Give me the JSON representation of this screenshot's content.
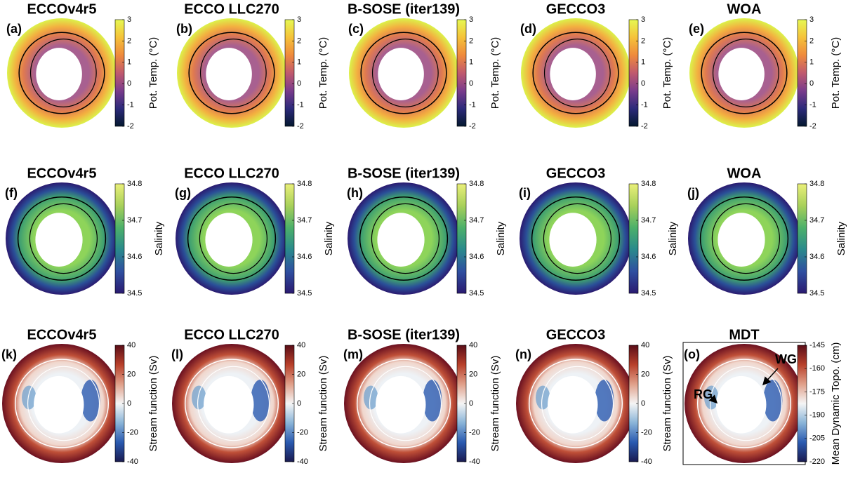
{
  "panels": [
    {
      "title": "ECCOv4r5",
      "label": "(a)",
      "colorbar": {
        "label": "Pot. Temp. (°C)",
        "lim": [
          -2,
          3
        ],
        "ticks": [
          -2,
          -1,
          0,
          1,
          2,
          3
        ],
        "colors": [
          "#04182e",
          "#2c2a7a",
          "#7a3c8c",
          "#c05a6e",
          "#ef8a3c",
          "#f5c23a",
          "#e6f852"
        ]
      }
    },
    {
      "title": "ECCO LLC270",
      "label": "(b)",
      "colorbar": {
        "label": "Pot. Temp. (°C)",
        "lim": [
          -2,
          3
        ],
        "ticks": [
          -2,
          -1,
          0,
          1,
          2,
          3
        ],
        "colors": [
          "#04182e",
          "#2c2a7a",
          "#7a3c8c",
          "#c05a6e",
          "#ef8a3c",
          "#f5c23a",
          "#e6f852"
        ]
      }
    },
    {
      "title": "B-SOSE (iter139)",
      "label": "(c)",
      "colorbar": {
        "label": "Pot. Temp. (°C)",
        "lim": [
          -2,
          3
        ],
        "ticks": [
          -2,
          -1,
          0,
          1,
          2,
          3
        ],
        "colors": [
          "#04182e",
          "#2c2a7a",
          "#7a3c8c",
          "#c05a6e",
          "#ef8a3c",
          "#f5c23a",
          "#e6f852"
        ]
      }
    },
    {
      "title": "GECCO3",
      "label": "(d)",
      "colorbar": {
        "label": "Pot. Temp. (°C)",
        "lim": [
          -2,
          3
        ],
        "ticks": [
          -2,
          -1,
          0,
          1,
          2,
          3
        ],
        "colors": [
          "#04182e",
          "#2c2a7a",
          "#7a3c8c",
          "#c05a6e",
          "#ef8a3c",
          "#f5c23a",
          "#e6f852"
        ]
      }
    },
    {
      "title": "WOA",
      "label": "(e)",
      "colorbar": {
        "label": "Pot. Temp. (°C)",
        "lim": [
          -2,
          3
        ],
        "ticks": [
          -2,
          -1,
          0,
          1,
          2,
          3
        ],
        "colors": [
          "#04182e",
          "#2c2a7a",
          "#7a3c8c",
          "#c05a6e",
          "#ef8a3c",
          "#f5c23a",
          "#e6f852"
        ]
      }
    },
    {
      "title": "ECCOv4r5",
      "label": "(f)",
      "colorbar": {
        "label": "Salinity",
        "lim": [
          34.5,
          34.8
        ],
        "ticks": [
          34.5,
          34.6,
          34.7,
          34.8
        ],
        "colors": [
          "#2a1a70",
          "#2f4fa0",
          "#2a8a8c",
          "#4cb06a",
          "#a8d05a",
          "#eaf07a"
        ]
      }
    },
    {
      "title": "ECCO LLC270",
      "label": "(g)",
      "colorbar": {
        "label": "Salinity",
        "lim": [
          34.5,
          34.8
        ],
        "ticks": [
          34.5,
          34.6,
          34.7,
          34.8
        ],
        "colors": [
          "#2a1a70",
          "#2f4fa0",
          "#2a8a8c",
          "#4cb06a",
          "#a8d05a",
          "#eaf07a"
        ]
      }
    },
    {
      "title": "B-SOSE (iter139)",
      "label": "(h)",
      "colorbar": {
        "label": "Salinity",
        "lim": [
          34.5,
          34.8
        ],
        "ticks": [
          34.5,
          34.6,
          34.7,
          34.8
        ],
        "colors": [
          "#2a1a70",
          "#2f4fa0",
          "#2a8a8c",
          "#4cb06a",
          "#a8d05a",
          "#eaf07a"
        ]
      }
    },
    {
      "title": "GECCO3",
      "label": "(i)",
      "colorbar": {
        "label": "Salinity",
        "lim": [
          34.5,
          34.8
        ],
        "ticks": [
          34.5,
          34.6,
          34.7,
          34.8
        ],
        "colors": [
          "#2a1a70",
          "#2f4fa0",
          "#2a8a8c",
          "#4cb06a",
          "#a8d05a",
          "#eaf07a"
        ]
      }
    },
    {
      "title": "WOA",
      "label": "(j)",
      "colorbar": {
        "label": "Salinity",
        "lim": [
          34.5,
          34.8
        ],
        "ticks": [
          34.5,
          34.6,
          34.7,
          34.8
        ],
        "colors": [
          "#2a1a70",
          "#2f4fa0",
          "#2a8a8c",
          "#4cb06a",
          "#a8d05a",
          "#eaf07a"
        ]
      }
    },
    {
      "title": "ECCOv4r5",
      "label": "(k)",
      "colorbar": {
        "label": "Stream function (Sv)",
        "lim": [
          -40,
          40
        ],
        "ticks": [
          -40,
          -20,
          0,
          20,
          40
        ],
        "colors": [
          "#1a1a50",
          "#2a5ab0",
          "#8ab4d8",
          "#f5f5f5",
          "#e0a08a",
          "#b8402a",
          "#5a0e18"
        ]
      }
    },
    {
      "title": "ECCO LLC270",
      "label": "(l)",
      "colorbar": {
        "label": "Stream function (Sv)",
        "lim": [
          -40,
          40
        ],
        "ticks": [
          -40,
          -20,
          0,
          20,
          40
        ],
        "colors": [
          "#1a1a50",
          "#2a5ab0",
          "#8ab4d8",
          "#f5f5f5",
          "#e0a08a",
          "#b8402a",
          "#5a0e18"
        ]
      }
    },
    {
      "title": "B-SOSE (iter139)",
      "label": "(m)",
      "colorbar": {
        "label": "Stream function (Sv)",
        "lim": [
          -40,
          40
        ],
        "ticks": [
          -40,
          -20,
          0,
          20,
          40
        ],
        "colors": [
          "#1a1a50",
          "#2a5ab0",
          "#8ab4d8",
          "#f5f5f5",
          "#e0a08a",
          "#b8402a",
          "#5a0e18"
        ]
      }
    },
    {
      "title": "GECCO3",
      "label": "(n)",
      "colorbar": {
        "label": "Stream function (Sv)",
        "lim": [
          -40,
          40
        ],
        "ticks": [
          -40,
          -20,
          0,
          20,
          40
        ],
        "colors": [
          "#1a1a50",
          "#2a5ab0",
          "#8ab4d8",
          "#f5f5f5",
          "#e0a08a",
          "#b8402a",
          "#5a0e18"
        ]
      }
    },
    {
      "title": "MDT",
      "label": "(o)",
      "colorbar": {
        "label": "Mean Dynamic Topo. (cm)",
        "lim": [
          -220,
          -145
        ],
        "ticks": [
          -145,
          -160,
          -175,
          -190,
          -205,
          -220
        ],
        "colors": [
          "#1a1a50",
          "#2a5ab0",
          "#8ab4d8",
          "#f5f5f5",
          "#e0a08a",
          "#b8402a",
          "#5a0e18"
        ]
      },
      "annotations": [
        {
          "text": "RG"
        },
        {
          "text": "WG"
        }
      ]
    }
  ]
}
